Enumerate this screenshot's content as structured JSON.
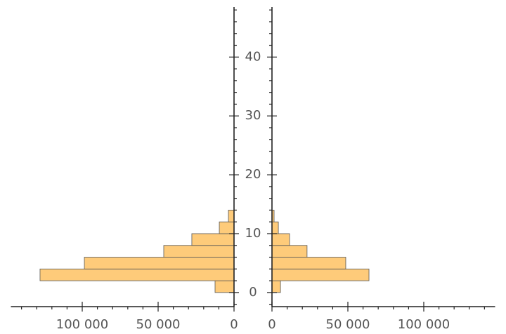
{
  "chart_data": {
    "type": "paired_histogram",
    "bins": [
      0,
      2,
      4,
      6,
      8,
      10,
      12,
      14
    ],
    "series": [
      {
        "color": "#fecb7a",
        "values": [
          12500,
          127800,
          98600,
          46300,
          27800,
          9700,
          3700
        ]
      },
      {
        "color": "#fecb7a",
        "values": [
          5600,
          63900,
          48600,
          23100,
          11600,
          4200,
          1400
        ]
      }
    ],
    "xlim": [
      0,
      147000
    ],
    "xticks": [
      0,
      {
        "value": 50000,
        "label": "50 000"
      },
      {
        "value": 100000,
        "label": "100 000"
      }
    ],
    "x_minor_ticks": [
      10000,
      20000,
      30000,
      40000,
      60000,
      70000,
      80000,
      90000,
      110000,
      120000,
      130000,
      140000
    ],
    "ylim": [
      -2.4,
      48.5
    ],
    "yticks": [
      0,
      10,
      20,
      30,
      40
    ],
    "y_minor_ticks": [
      -2,
      2,
      4,
      6,
      8,
      12,
      14,
      16,
      18,
      22,
      24,
      26,
      28,
      32,
      34,
      36,
      38,
      42,
      44,
      46,
      48
    ]
  }
}
